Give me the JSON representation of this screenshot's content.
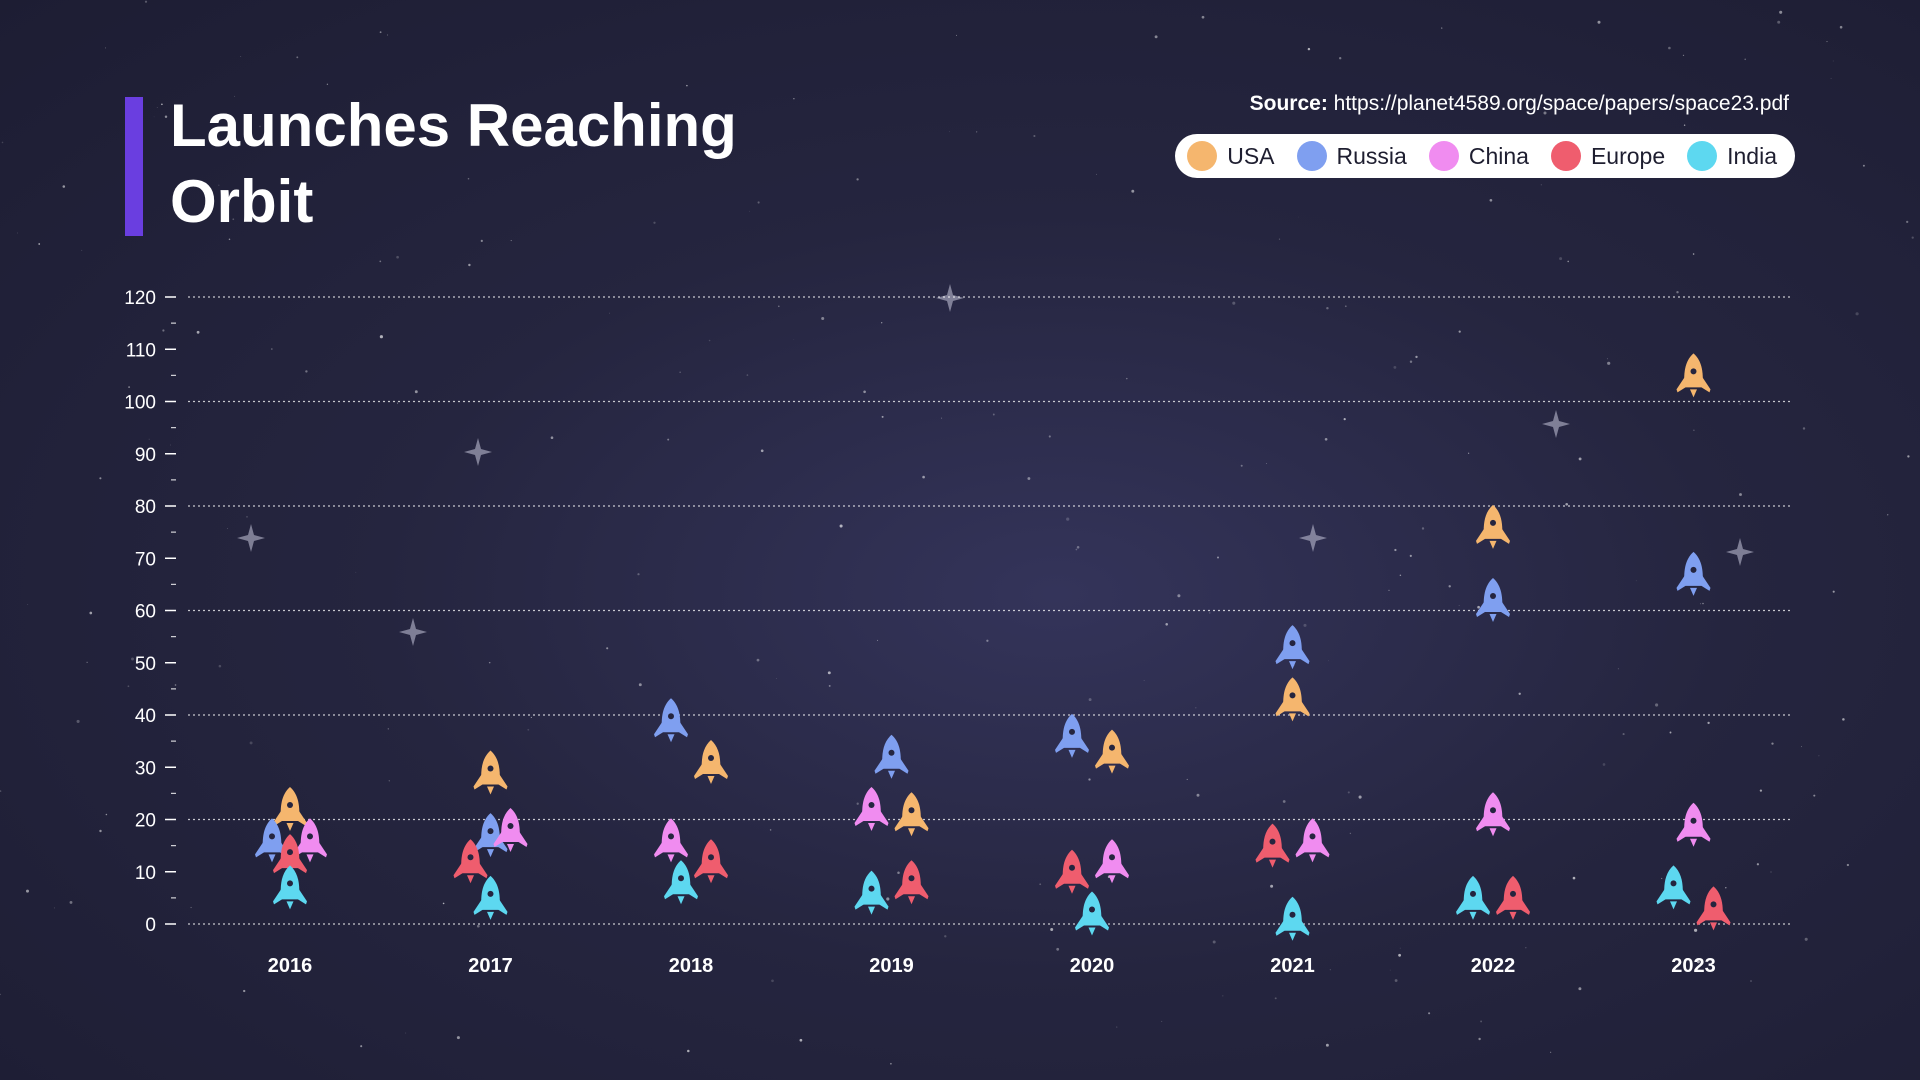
{
  "title": "Launches Reaching Orbit",
  "source": {
    "label": "Source:",
    "url": "https://planet4589.org/space/papers/space23.pdf"
  },
  "colors": {
    "accent": "#6a3ee0",
    "USA": "#f5b66e",
    "Russia": "#7f9ff0",
    "China": "#f08cf0",
    "Europe": "#ef5d6e",
    "India": "#5dd8f0"
  },
  "chart_data": {
    "type": "scatter",
    "categories": [
      "2016",
      "2017",
      "2018",
      "2019",
      "2020",
      "2021",
      "2022",
      "2023"
    ],
    "ylim": [
      0,
      120
    ],
    "yticks": [
      "0",
      "10",
      "20",
      "30",
      "40",
      "50",
      "60",
      "70",
      "80",
      "90",
      "100",
      "110",
      "120"
    ],
    "grid": "dotted horizontal lines every 20",
    "marker": "rocket",
    "legend_position": "top-right",
    "series": [
      {
        "name": "USA",
        "values": [
          22,
          29,
          31,
          21,
          33,
          43,
          76,
          105
        ]
      },
      {
        "name": "Russia",
        "values": [
          16,
          17,
          39,
          32,
          36,
          53,
          62,
          67
        ]
      },
      {
        "name": "China",
        "values": [
          16,
          18,
          16,
          22,
          12,
          16,
          21,
          19
        ]
      },
      {
        "name": "Europe",
        "values": [
          13,
          12,
          12,
          8,
          10,
          15,
          5,
          3
        ]
      },
      {
        "name": "India",
        "values": [
          7,
          5,
          8,
          6,
          2,
          1,
          5,
          7
        ]
      }
    ]
  }
}
